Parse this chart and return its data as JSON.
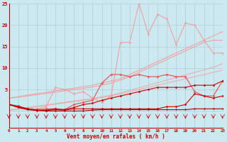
{
  "x": [
    0,
    1,
    2,
    3,
    4,
    5,
    6,
    7,
    8,
    9,
    10,
    11,
    12,
    13,
    14,
    15,
    16,
    17,
    18,
    19,
    20,
    21,
    22,
    23
  ],
  "straight1": [
    3.0,
    3.3,
    3.7,
    4.0,
    4.3,
    4.7,
    5.0,
    5.3,
    5.7,
    6.0,
    6.5,
    7.0,
    7.5,
    8.5,
    9.5,
    10.5,
    11.5,
    12.5,
    13.5,
    14.5,
    15.5,
    16.5,
    17.5,
    18.5
  ],
  "straight2": [
    3.0,
    3.2,
    3.5,
    3.8,
    4.1,
    4.4,
    4.7,
    5.0,
    5.3,
    5.6,
    6.0,
    6.5,
    7.2,
    8.0,
    9.0,
    10.0,
    11.0,
    12.0,
    13.0,
    14.0,
    15.0,
    16.0,
    16.5,
    16.5
  ],
  "straight3": [
    0.2,
    0.5,
    0.8,
    1.1,
    1.4,
    1.7,
    2.0,
    2.3,
    2.6,
    2.9,
    3.3,
    3.7,
    4.2,
    4.8,
    5.4,
    6.0,
    6.6,
    7.2,
    7.8,
    8.4,
    9.0,
    9.6,
    10.2,
    11.0
  ],
  "straight4": [
    0.2,
    0.4,
    0.7,
    1.0,
    1.3,
    1.6,
    1.9,
    2.2,
    2.5,
    2.8,
    3.1,
    3.5,
    4.0,
    4.5,
    5.0,
    5.5,
    6.0,
    6.5,
    7.0,
    7.5,
    8.0,
    8.5,
    9.0,
    9.5
  ],
  "jagged_pink": [
    1.5,
    1.0,
    0.5,
    0.5,
    1.0,
    5.5,
    5.0,
    4.0,
    4.5,
    3.0,
    2.0,
    3.5,
    16.0,
    16.0,
    25.0,
    18.0,
    22.5,
    21.5,
    15.5,
    20.5,
    20.0,
    16.5,
    13.5,
    13.5
  ],
  "jagged_red1": [
    1.5,
    1.2,
    0.5,
    0.3,
    0.5,
    0.5,
    0.3,
    1.5,
    2.0,
    2.5,
    6.5,
    8.5,
    8.5,
    8.0,
    8.5,
    8.0,
    8.0,
    8.5,
    8.0,
    8.0,
    4.5,
    3.5,
    3.5,
    7.0
  ],
  "jagged_red2": [
    1.5,
    1.0,
    0.5,
    0.2,
    0.2,
    0.5,
    0.3,
    0.8,
    1.5,
    1.8,
    2.5,
    3.0,
    3.5,
    4.0,
    4.5,
    5.0,
    5.5,
    5.5,
    5.5,
    5.5,
    6.0,
    6.0,
    6.0,
    7.0
  ],
  "jagged_red3": [
    1.5,
    1.0,
    0.5,
    0.2,
    0.1,
    0.3,
    0.2,
    0.5,
    0.5,
    0.5,
    0.5,
    0.5,
    0.5,
    0.5,
    0.5,
    0.5,
    0.5,
    1.0,
    1.0,
    1.5,
    4.0,
    3.5,
    3.0,
    3.5
  ],
  "jagged_red4": [
    1.5,
    0.8,
    0.3,
    0.1,
    0.0,
    0.0,
    0.0,
    0.0,
    0.0,
    0.2,
    0.3,
    0.3,
    0.3,
    0.3,
    0.3,
    0.3,
    0.3,
    0.3,
    0.3,
    0.3,
    0.5,
    0.5,
    0.5,
    0.5
  ],
  "xlabel": "Vent moyen/en rafales ( km/h )",
  "xlim": [
    0,
    23
  ],
  "ylim": [
    0,
    25
  ],
  "yticks": [
    0,
    5,
    10,
    15,
    20,
    25
  ],
  "bg_color": "#cce8f0",
  "grid_color": "#aacccc",
  "color_light_pink": "#f0a0a0",
  "color_pink": "#e06060",
  "color_dark_red": "#cc0000",
  "color_red": "#dd0000"
}
